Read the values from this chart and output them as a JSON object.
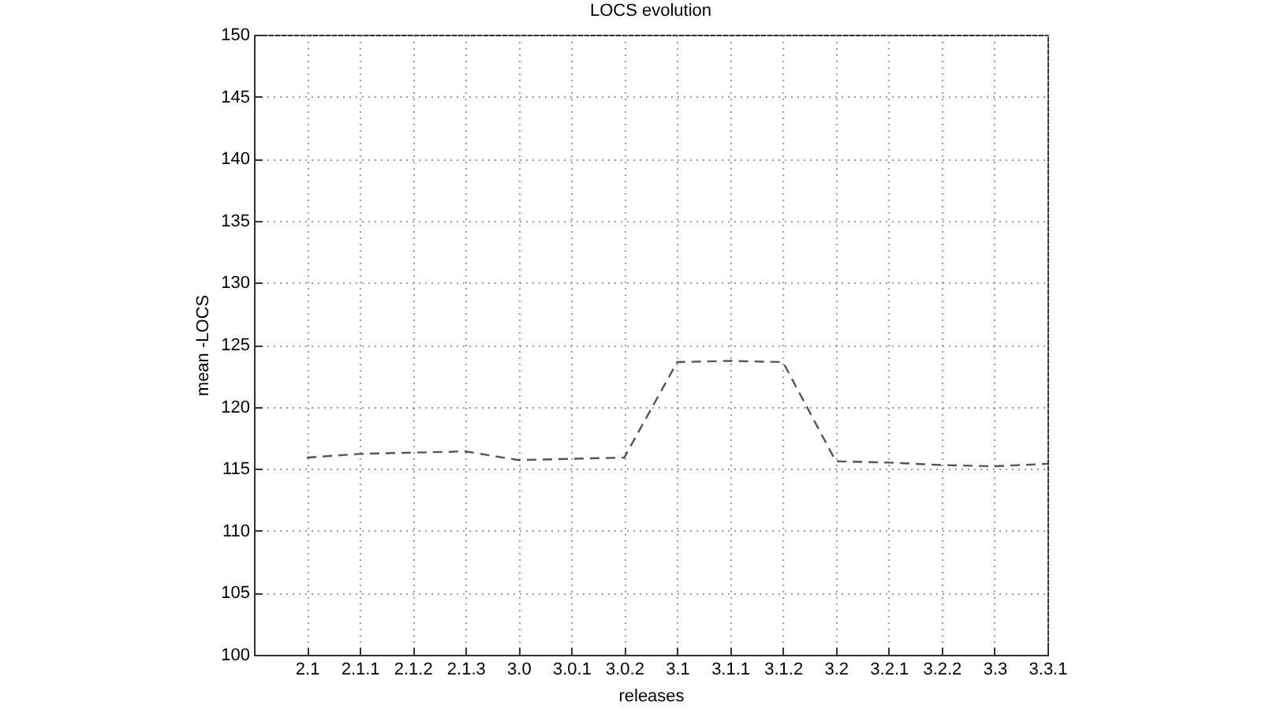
{
  "chart_data": {
    "type": "line",
    "title": "LOCS evolution",
    "xlabel": "releases",
    "ylabel": "mean -LOCS",
    "categories": [
      "2.1",
      "2.1.1",
      "2.1.2",
      "2.1.3",
      "3.0",
      "3.0.1",
      "3.0.2",
      "3.1",
      "3.1.1",
      "3.1.2",
      "3.2",
      "3.2.1",
      "3.2.2",
      "3.3",
      "3.3.1"
    ],
    "series": [
      {
        "color": "#555555",
        "values": [
          115.9,
          116.2,
          116.3,
          116.4,
          115.7,
          115.8,
          115.9,
          123.6,
          123.7,
          123.6,
          115.6,
          115.5,
          115.3,
          115.2,
          115.4
        ]
      }
    ],
    "ylim": [
      100,
      150
    ],
    "yticks": [
      100,
      105,
      110,
      115,
      120,
      125,
      130,
      135,
      140,
      145,
      150
    ],
    "grid": true,
    "line_style": "dashed",
    "marker": "none"
  }
}
